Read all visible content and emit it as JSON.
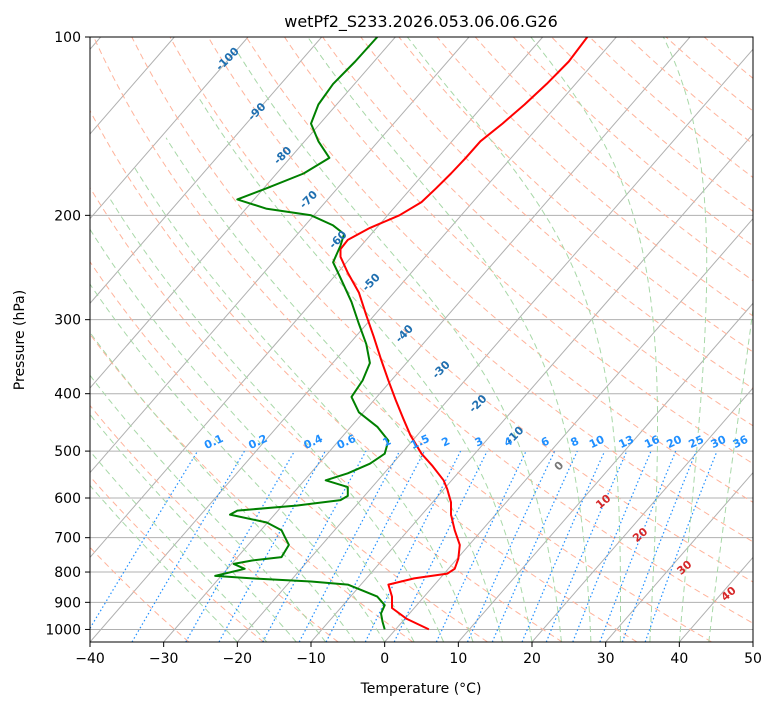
{
  "chart_data": {
    "type": "line",
    "title": "wetPf2_S233.2026.053.06.06.G26",
    "xlabel": "Temperature (°C)",
    "ylabel": "Pressure (hPa)",
    "xlim": [
      -40,
      50
    ],
    "ylim": [
      1050,
      100
    ],
    "y_scale": "log",
    "x_ticks": [
      -40,
      -30,
      -20,
      -10,
      0,
      10,
      20,
      30,
      40,
      50
    ],
    "y_ticks": [
      100,
      200,
      300,
      400,
      500,
      600,
      700,
      800,
      900,
      1000
    ],
    "grid": true,
    "colors": {
      "temperature": "#ff0000",
      "dewpoint": "#008000",
      "isotherm": "#b0b0b0",
      "dry_adiabat": "#ffb39b",
      "moist_adiabat": "#a8d8a8",
      "mixing_ratio": "#1f8fff",
      "wet_bulb_labels": "#1f6fb0",
      "adiabat_labels": "#d62728"
    },
    "series": [
      {
        "key": "temperature",
        "points": [
          [
            6.0,
            1000
          ],
          [
            3.0,
            960
          ],
          [
            1.0,
            920
          ],
          [
            1.0,
            880
          ],
          [
            0.5,
            840
          ],
          [
            4.0,
            820
          ],
          [
            8.5,
            805
          ],
          [
            9.5,
            790
          ],
          [
            10.0,
            760
          ],
          [
            10.2,
            720
          ],
          [
            9.5,
            680
          ],
          [
            9.0,
            640
          ],
          [
            9.0,
            610
          ],
          [
            8.5,
            580
          ],
          [
            8.0,
            560
          ],
          [
            6.5,
            530
          ],
          [
            5.0,
            505
          ],
          [
            3.5,
            470
          ],
          [
            2.5,
            440
          ],
          [
            1.5,
            410
          ],
          [
            0.5,
            380
          ],
          [
            -0.5,
            350
          ],
          [
            -1.5,
            320
          ],
          [
            -2.5,
            295
          ],
          [
            -3.5,
            270
          ],
          [
            -5.0,
            250
          ],
          [
            -6.0,
            235
          ],
          [
            -6.0,
            228
          ],
          [
            -5.0,
            220
          ],
          [
            -2.0,
            210
          ],
          [
            2.0,
            200
          ],
          [
            5.0,
            190
          ],
          [
            7.0,
            180
          ],
          [
            9.0,
            170
          ],
          [
            11.0,
            160
          ],
          [
            13.0,
            150
          ],
          [
            16.0,
            140
          ],
          [
            19.0,
            130
          ],
          [
            22.0,
            120
          ],
          [
            25.0,
            110
          ],
          [
            27.5,
            100
          ]
        ]
      },
      {
        "key": "dewpoint",
        "points": [
          [
            0.0,
            1000
          ],
          [
            -0.3,
            970
          ],
          [
            -0.5,
            940
          ],
          [
            0.0,
            910
          ],
          [
            -1.0,
            880
          ],
          [
            -3.0,
            860
          ],
          [
            -5.0,
            840
          ],
          [
            -10.0,
            830
          ],
          [
            -18.0,
            820
          ],
          [
            -23.0,
            812
          ],
          [
            -19.0,
            790
          ],
          [
            -20.5,
            775
          ],
          [
            -18.0,
            765
          ],
          [
            -14.0,
            755
          ],
          [
            -13.0,
            720
          ],
          [
            -13.5,
            700
          ],
          [
            -14.0,
            680
          ],
          [
            -16.0,
            660
          ],
          [
            -21.0,
            640
          ],
          [
            -20.0,
            630
          ],
          [
            -12.0,
            618
          ],
          [
            -6.0,
            605
          ],
          [
            -5.0,
            595
          ],
          [
            -5.0,
            575
          ],
          [
            -8.0,
            560
          ],
          [
            -5.0,
            545
          ],
          [
            -2.0,
            525
          ],
          [
            0.0,
            505
          ],
          [
            0.5,
            480
          ],
          [
            -1.0,
            455
          ],
          [
            -3.5,
            430
          ],
          [
            -4.5,
            405
          ],
          [
            -3.0,
            380
          ],
          [
            -2.0,
            355
          ],
          [
            -2.5,
            330
          ],
          [
            -3.5,
            305
          ],
          [
            -4.5,
            280
          ],
          [
            -6.0,
            255
          ],
          [
            -7.0,
            240
          ],
          [
            -6.0,
            225
          ],
          [
            -5.5,
            215
          ],
          [
            -7.0,
            208
          ],
          [
            -10.0,
            200
          ],
          [
            -16.0,
            195
          ],
          [
            -20.0,
            188
          ],
          [
            -16.0,
            180
          ],
          [
            -11.0,
            170
          ],
          [
            -7.5,
            160
          ],
          [
            -9.0,
            150
          ],
          [
            -10.0,
            140
          ],
          [
            -9.0,
            130
          ],
          [
            -7.0,
            120
          ],
          [
            -4.0,
            110
          ],
          [
            -1.0,
            100
          ]
        ]
      }
    ],
    "mixing_ratio_labels": [
      "0.1",
      "0.2",
      "0.4",
      "0.6",
      "1",
      "1.5",
      "2",
      "3",
      "4",
      "6",
      "8",
      "10",
      "13",
      "16",
      "20",
      "25",
      "30",
      "36"
    ],
    "mixing_ratio_label_x": [
      -23,
      -17,
      -9.5,
      -5,
      0.5,
      5,
      8.5,
      13,
      17,
      22,
      26,
      29,
      33,
      36.5,
      39.5,
      42.5,
      45.5,
      48.5
    ],
    "wet_bulb_labels": [
      "-100",
      "-90",
      "-80",
      "-70",
      "-60",
      "-50",
      "-40",
      "-30",
      "-20",
      "-10",
      "0"
    ],
    "wet_bulb_label_pos": [
      [
        -21,
        110
      ],
      [
        -17,
        135
      ],
      [
        -13.5,
        160
      ],
      [
        -10,
        190
      ],
      [
        -6,
        222
      ],
      [
        -1.5,
        262
      ],
      [
        3,
        320
      ],
      [
        8,
        368
      ],
      [
        13,
        420
      ],
      [
        18,
        475
      ],
      [
        24,
        535
      ]
    ],
    "adiabat_labels": [
      "10",
      "20",
      "30",
      "40"
    ],
    "adiabat_label_pos": [
      [
        30,
        615
      ],
      [
        35,
        700
      ],
      [
        41,
        795
      ],
      [
        47,
        880
      ]
    ]
  }
}
